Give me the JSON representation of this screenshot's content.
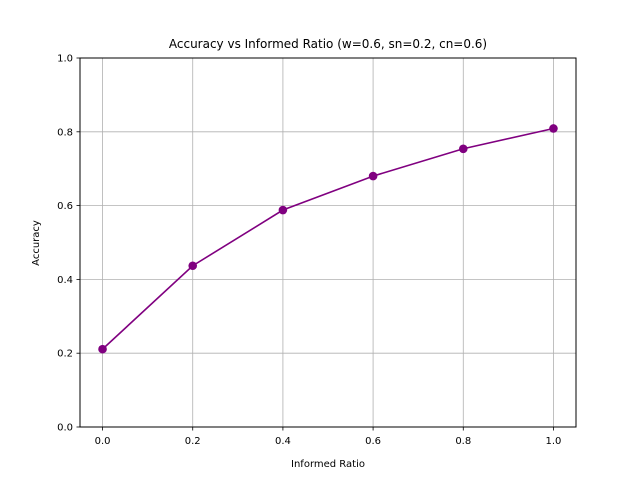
{
  "chart_data": {
    "type": "line",
    "title": "Accuracy vs Informed Ratio (w=0.6, sn=0.2, cn=0.6)",
    "xlabel": "Informed Ratio",
    "ylabel": "Accuracy",
    "xlim": [
      -0.05,
      1.05
    ],
    "ylim": [
      0.0,
      1.0
    ],
    "xticks": [
      "0.0",
      "0.2",
      "0.4",
      "0.6",
      "0.8",
      "1.0"
    ],
    "yticks": [
      "0.0",
      "0.2",
      "0.4",
      "0.6",
      "0.8",
      "1.0"
    ],
    "grid": true,
    "legend": "none",
    "series": [
      {
        "color": "#800080",
        "marker": "circle",
        "x": [
          0.0,
          0.2,
          0.4,
          0.6,
          0.8,
          1.0
        ],
        "y": [
          0.211,
          0.437,
          0.588,
          0.68,
          0.754,
          0.809
        ]
      }
    ]
  }
}
